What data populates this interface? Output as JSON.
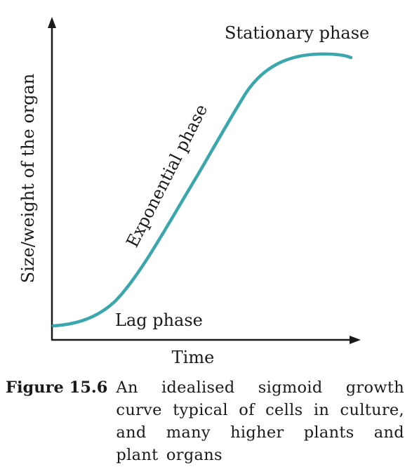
{
  "diagram": {
    "curve_color": "#3aa6ad",
    "axis_color": "#1a1a1a",
    "y_axis_label": "Size/weight of the organ",
    "x_axis_label": "Time",
    "phases": {
      "lag": "Lag phase",
      "exponential": "Exponential phase",
      "stationary": "Stationary phase"
    }
  },
  "caption": {
    "label": "Figure 15.6",
    "text": "An idealised sigmoid growth curve typical of cells in culture, and many higher plants and plant organs"
  }
}
